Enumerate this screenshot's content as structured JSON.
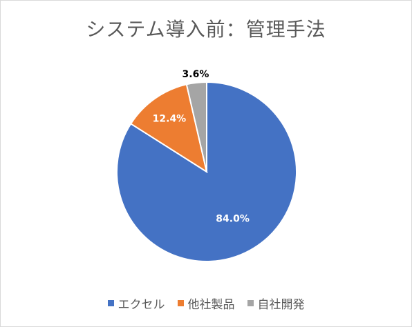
{
  "chart_data": {
    "type": "pie",
    "title": "システム導入前：管理手法",
    "slices": [
      {
        "name": "エクセル",
        "value": 84.0,
        "label": "84.0%",
        "color": "#4472c4"
      },
      {
        "name": "他社製品",
        "value": 12.4,
        "label": "12.4%",
        "color": "#ed7d31"
      },
      {
        "name": "自社開発",
        "value": 3.6,
        "label": "3.6%",
        "color": "#a5a5a5"
      }
    ],
    "legend_position": "bottom"
  }
}
